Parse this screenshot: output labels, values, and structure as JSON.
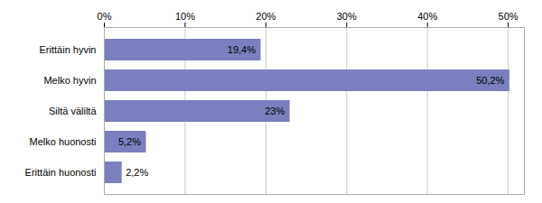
{
  "chart_data": {
    "type": "bar",
    "orientation": "horizontal",
    "categories": [
      "Erittäin hyvin",
      "Melko hyvin",
      "Siltä väliltä",
      "Melko huonosti",
      "Erittäin huonosti"
    ],
    "values": [
      19.4,
      50.2,
      23.0,
      5.2,
      2.2
    ],
    "value_labels": [
      "19,4%",
      "50,2%",
      "23%",
      "5,2%",
      "2,2%"
    ],
    "data_labels": true,
    "color": "#7b7fbf",
    "xlim": [
      0,
      52
    ],
    "xticks": [
      {
        "value": 0,
        "label": "0%"
      },
      {
        "value": 10,
        "label": "10%"
      },
      {
        "value": 20,
        "label": "20%"
      },
      {
        "value": 30,
        "label": "30%"
      },
      {
        "value": 40,
        "label": "40%"
      },
      {
        "value": 50,
        "label": "50%"
      }
    ],
    "grid": true
  }
}
